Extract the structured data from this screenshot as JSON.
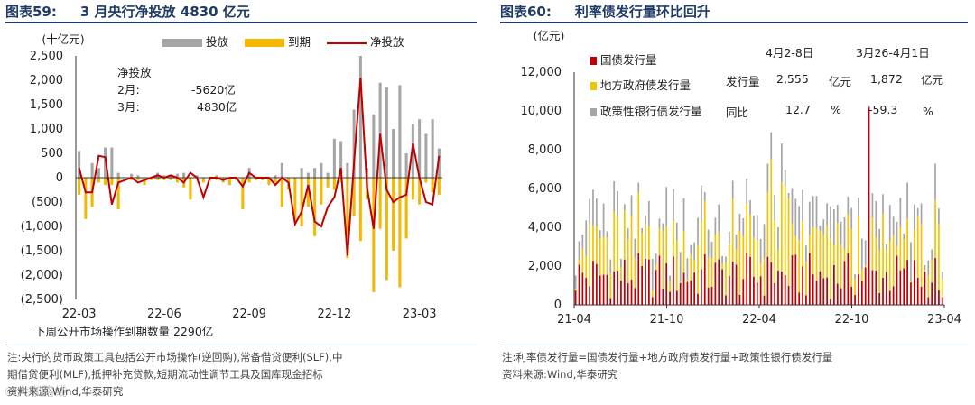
{
  "left": {
    "fig_num": "图表59:",
    "fig_title": "3 月央行净投放 4830 亿元",
    "chart_data": {
      "type": "bar",
      "title": "3 月央行净投放 4830 亿元",
      "ylabel": "(十亿元)",
      "ylim": [
        -2500,
        2500
      ],
      "yticks": [
        2500,
        2000,
        1500,
        1000,
        500,
        0,
        -500,
        -1000,
        -1500,
        -2000,
        -2500
      ],
      "ytick_labels": [
        "2,500",
        "2,000",
        "1,500",
        "1,000",
        "500",
        "0",
        "(500)",
        "(1,000)",
        "(1,500)",
        "(2,000)",
        "(2,500)"
      ],
      "xtick_labels": [
        "22-03",
        "22-06",
        "22-09",
        "22-12",
        "23-03"
      ],
      "xtick_index": [
        0,
        13,
        26,
        39,
        52
      ],
      "series": [
        {
          "name": "投放",
          "color": "#a6a6a6",
          "values": [
            550,
            0,
            300,
            200,
            620,
            620,
            100,
            0,
            80,
            50,
            0,
            0,
            100,
            50,
            50,
            80,
            100,
            0,
            50,
            0,
            0,
            50,
            0,
            0,
            0,
            0,
            200,
            0,
            0,
            0,
            50,
            300,
            0,
            0,
            200,
            100,
            200,
            300,
            100,
            800,
            750,
            300,
            1400,
            2500,
            200,
            1300,
            1950,
            1850,
            1000,
            1900,
            500,
            1100,
            1200,
            900,
            1200,
            600
          ]
        },
        {
          "name": "到期",
          "color": "#f5b800",
          "values": [
            -350,
            -850,
            -600,
            -100,
            -150,
            -150,
            -650,
            0,
            -50,
            -50,
            -150,
            -50,
            -50,
            -50,
            -50,
            -100,
            -200,
            -450,
            0,
            -100,
            -50,
            -50,
            -100,
            -150,
            -50,
            -650,
            -100,
            -50,
            -50,
            -150,
            -100,
            -600,
            -250,
            -900,
            -1000,
            -600,
            -1200,
            -550,
            -200,
            -250,
            -100,
            -1650,
            -800,
            -1300,
            -450,
            -2350,
            -1050,
            -2100,
            -1500,
            -2250,
            -1250,
            -450,
            -550,
            -100,
            -300,
            -350
          ]
        },
        {
          "name": "净投放",
          "color": "#c00000",
          "values": [
            200,
            -300,
            -300,
            450,
            420,
            -550,
            -100,
            -50,
            0,
            -100,
            -50,
            0,
            50,
            0,
            50,
            0,
            -100,
            100,
            0,
            -400,
            0,
            0,
            -50,
            0,
            0,
            -180,
            100,
            0,
            0,
            0,
            -150,
            0,
            -100,
            -950,
            -700,
            -150,
            -900,
            -1000,
            -600,
            -400,
            200,
            -1600,
            300,
            2050,
            -200,
            -1050,
            900,
            -250,
            -500,
            -400,
            -350,
            700,
            0,
            -500,
            -550,
            450
          ]
        }
      ],
      "legend_position": "top"
    },
    "annotation": {
      "title": "净投放",
      "row1_label": "2月:",
      "row1_value": "-5620亿",
      "row2_label": "3月:",
      "row2_value": "4830亿"
    },
    "footer": "下周公开市场操作到期数量 2290亿",
    "notes": [
      "注:央行的货币政策工具包括公开市场操作(逆回购),常备借贷便利(SLF),中",
      "期借贷便利(MLF),抵押补充贷款,短期流动性调节工具及国库现金招标",
      "资料来源:Wind,华泰研究"
    ],
    "watermark": "©大咖路线"
  },
  "right": {
    "fig_num": "图表60:",
    "fig_title": "利率债发行量环比回升",
    "chart_data": {
      "type": "bar",
      "title": "利率债发行量环比回升",
      "ylabel": "(亿元)",
      "ylim": [
        0,
        12000
      ],
      "yticks": [
        0,
        2000,
        4000,
        6000,
        8000,
        10000,
        12000
      ],
      "ytick_labels": [
        "0",
        "2,000",
        "4,000",
        "6,000",
        "8,000",
        "10,000",
        "12,000"
      ],
      "xtick_labels": [
        "21-04",
        "21-10",
        "22-04",
        "22-10",
        "23-04"
      ],
      "stacked": true,
      "series": [
        {
          "name": "国债发行量",
          "color": "#c00000"
        },
        {
          "name": "地方政府债发行量",
          "color": "#f5c400"
        },
        {
          "name": "政策性银行债发行量",
          "color": "#a6a6a6"
        }
      ],
      "legend_position": "top-left"
    },
    "table": {
      "col1": "4月2-8日",
      "col2": "3月26-4月1日",
      "row1": {
        "label": "发行量",
        "v1": "2,555",
        "u1": "亿元",
        "v2": "1,872",
        "u2": "亿元"
      },
      "row2": {
        "label": "同比",
        "v1": "12.7",
        "u1": "%",
        "v2": "-59.3",
        "u2": "%"
      }
    },
    "notes": [
      "注:利率债发行量=国债发行量+地方政府债发行量+政策性银行债发行量",
      "资料来源:Wind,华泰研究"
    ]
  }
}
